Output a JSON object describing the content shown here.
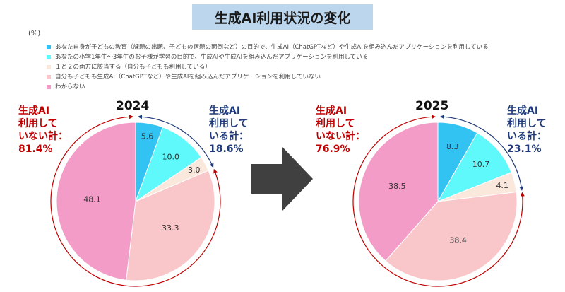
{
  "header": {
    "title": "生成AI利用状況の変化",
    "unit": "(%)"
  },
  "legend": [
    {
      "label": "あなた自身が子どもの教育（課題の出題、子どもの宿題の面倒など）の目的で、生成AI（ChatGPTなど）や生成AIを組み込んだアプリケーションを利用している",
      "color": "#33c3f3"
    },
    {
      "label": "あなたの小学1年生～3年生のお子様が学習の目的で、生成AIや生成AIを組み込んだアプリケーションを利用している",
      "color": "#5ff8fb"
    },
    {
      "label": "１と２の両方に該当する（自分も子どもも利用している）",
      "color": "#fbe8dd"
    },
    {
      "label": "自分も子どもも生成AI（ChatGPTなど）や生成AIを組み込んだアプリケーションを利用していない",
      "color": "#f9c6c9"
    },
    {
      "label": "わからない",
      "color": "#f49cc8"
    }
  ],
  "chart_data": [
    {
      "type": "pie",
      "title": "2024",
      "categories": [
        "self",
        "child",
        "both",
        "none",
        "unknown"
      ],
      "values": [
        5.6,
        10.0,
        3.0,
        33.3,
        48.1
      ],
      "value_labels": [
        "5.6",
        "10.0",
        "3.0",
        "33.3",
        "48.1"
      ],
      "not_using_label": "生成AI利用していない計：81.4%",
      "not_using_lines": [
        "生成AI",
        "利用して",
        "いない計：",
        "81.4%"
      ],
      "using_label": "生成AI利用している計：18.6%",
      "using_lines": [
        "生成AI",
        "利用して",
        "いる計：",
        "18.6%"
      ]
    },
    {
      "type": "pie",
      "title": "2025",
      "categories": [
        "self",
        "child",
        "both",
        "none",
        "unknown"
      ],
      "values": [
        8.3,
        10.7,
        4.1,
        38.4,
        38.5
      ],
      "value_labels": [
        "8.3",
        "10.7",
        "4.1",
        "38.4",
        "38.5"
      ],
      "not_using_label": "生成AI利用していない計：76.9%",
      "not_using_lines": [
        "生成AI",
        "利用して",
        "いない計：",
        "76.9%"
      ],
      "using_label": "生成AI利用している計：23.1%",
      "using_lines": [
        "生成AI",
        "利用して",
        "いる計：",
        "23.1%"
      ]
    }
  ],
  "colors": {
    "slices": [
      "#33c3f3",
      "#5ff8fb",
      "#fbe8dd",
      "#f9c6c9",
      "#f49cc8"
    ],
    "not_using": "#c00000",
    "using": "#1f3a7a",
    "arrow": "#404040"
  }
}
